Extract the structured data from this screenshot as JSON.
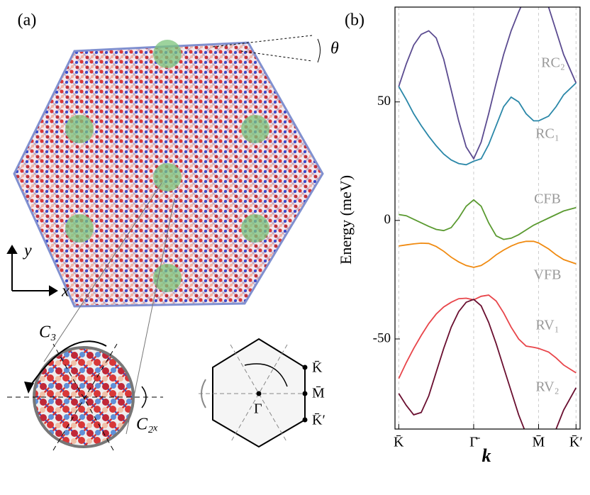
{
  "panel_labels": [
    "(a)",
    "(b)"
  ],
  "panel_a": {
    "angle_label": "θ",
    "axis_y": "y",
    "axis_x": "x",
    "rotation_c3": "C₃",
    "rotation_c2x": "C₂ₓ",
    "bz_points": [
      "K̄",
      "M̄",
      "K̄′",
      "Γ"
    ]
  },
  "chart_data": {
    "type": "line",
    "y_label": "Energy (meV)",
    "x_label": "k",
    "x": [
      0,
      0.1,
      0.2,
      0.3,
      0.4,
      0.5,
      0.6,
      0.7,
      0.8,
      0.9,
      1.0,
      1.1,
      1.2,
      1.3,
      1.4,
      1.5,
      1.6,
      1.7,
      1.8,
      1.866,
      2.0,
      2.1,
      2.2,
      2.366
    ],
    "xlim": [
      -0.05,
      2.42
    ],
    "ylim": [
      -88,
      90
    ],
    "xticks": [
      {
        "value": 0,
        "label": "K̄"
      },
      {
        "value": 1.0,
        "label": "Γ̄"
      },
      {
        "value": 1.866,
        "label": "M̄"
      },
      {
        "value": 2.366,
        "label": "K̄′"
      }
    ],
    "yticks": [
      -50,
      0,
      50
    ],
    "grid": true,
    "series": [
      {
        "name": "RC₂",
        "color": "#5b4b90",
        "values": [
          56.5,
          66,
          74,
          78.5,
          80,
          77,
          68,
          55,
          42,
          31,
          26,
          33,
          45,
          58,
          70,
          80,
          88,
          95,
          100,
          102,
          90,
          80,
          70,
          58
        ]
      },
      {
        "name": "RC₁",
        "color": "#2a87a8",
        "values": [
          56.5,
          51,
          45,
          40,
          35.5,
          31.5,
          28,
          25.5,
          24,
          23.5,
          25,
          26,
          32,
          40,
          48,
          52,
          50,
          45,
          42,
          42,
          44,
          48,
          53,
          58
        ]
      },
      {
        "name": "CFB",
        "color": "#5a9a30",
        "values": [
          2.5,
          2,
          0.5,
          -1,
          -2.5,
          -3.8,
          -4.3,
          -3,
          1,
          6,
          8.7,
          6,
          -1,
          -6.5,
          -8,
          -7.5,
          -6,
          -4,
          -2,
          -1,
          1,
          2.5,
          4,
          5.4
        ]
      },
      {
        "name": "VFB",
        "color": "#f08a10",
        "values": [
          -10.8,
          -10.3,
          -9.9,
          -9.6,
          -9.7,
          -11,
          -13,
          -15.5,
          -17.5,
          -19,
          -19.8,
          -19,
          -17,
          -14.5,
          -12.5,
          -10.8,
          -9.5,
          -8.8,
          -8.8,
          -9.5,
          -12,
          -14.5,
          -16.5,
          -18.3
        ]
      },
      {
        "name": "RV₁",
        "color": "#e8454a",
        "values": [
          -66.7,
          -60,
          -54,
          -48.5,
          -43.5,
          -39.5,
          -36.5,
          -34.5,
          -33,
          -32.8,
          -33.5,
          -32,
          -31.5,
          -34,
          -39,
          -45,
          -50,
          -53,
          -53.5,
          -54,
          -55.5,
          -58,
          -61,
          -64.3
        ]
      },
      {
        "name": "RV₂",
        "color": "#6a0f30",
        "values": [
          -73,
          -78,
          -82,
          -81,
          -74,
          -64,
          -54,
          -45,
          -38.5,
          -34.5,
          -33.3,
          -36,
          -43,
          -52,
          -62,
          -72,
          -82,
          -90,
          -96,
          -98,
          -95,
          -88,
          -80,
          -70.6
        ]
      }
    ]
  }
}
